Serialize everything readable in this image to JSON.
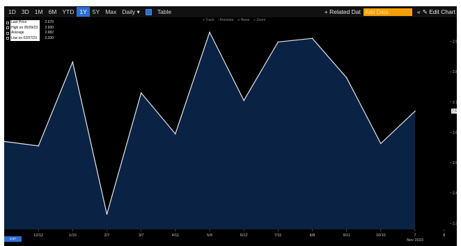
{
  "toolbar": {
    "periods": [
      "1D",
      "3D",
      "1M",
      "6M",
      "YTD",
      "1Y",
      "5Y",
      "Max"
    ],
    "active_period": "1Y",
    "frequency": "Daily ▾",
    "table_label": "Table",
    "related_data": "+ Related Dat",
    "add_data_placeholder": "Add Data",
    "collapse_glyph": "«",
    "edit_chart": "✎ Edit Chart",
    "settings_icon": "gear-icon"
  },
  "chart_tools": [
    "+ Track",
    "∕ Annotate",
    "≡ News",
    "⌕ Zoom"
  ],
  "legend": [
    {
      "label": "Last Price",
      "value": "2.670"
    },
    {
      "label": "High on 05/09/23",
      "value": "2.930"
    },
    {
      "label": "Average",
      "value": "2.682"
    },
    {
      "label": "Low on 02/07/23",
      "value": "2.330"
    }
  ],
  "last_price_badge": "2.67",
  "page_badge": "2.67",
  "colors": {
    "background": "#000000",
    "area_fill": "#0a2244",
    "line": "#e8e8e8",
    "accent": "#2b6fd4",
    "add_data": "#f5a000"
  },
  "chart_data": {
    "type": "area",
    "x_labels": [
      "12/12",
      "1/10",
      "2/7",
      "3/7",
      "4/11",
      "5/9",
      "6/12",
      "7/11",
      "8/8",
      "9/11",
      "10/10",
      "7",
      "8"
    ],
    "x_sublabel": "Nov 2023",
    "y_ticks": [
      "2.9",
      "2.8",
      "2.7",
      "2.6",
      "2.5",
      "2.4",
      "2.3"
    ],
    "ylim": [
      2.28,
      2.97
    ],
    "grid": false,
    "points": [
      {
        "x": "Nov 2022",
        "y": 2.57
      },
      {
        "x": "Dec 2022",
        "y": 2.555
      },
      {
        "x": "Jan 2023",
        "y": 2.832
      },
      {
        "x": "Feb 2023",
        "y": 2.33
      },
      {
        "x": "Mar 2023",
        "y": 2.73
      },
      {
        "x": "Apr 2023",
        "y": 2.595
      },
      {
        "x": "May 2023",
        "y": 2.93
      },
      {
        "x": "Jun 2023",
        "y": 2.705
      },
      {
        "x": "Jul 2023",
        "y": 2.898
      },
      {
        "x": "Aug 2023",
        "y": 2.91
      },
      {
        "x": "Sep 2023",
        "y": 2.78
      },
      {
        "x": "Oct 2023",
        "y": 2.563
      },
      {
        "x": "Nov 2023",
        "y": 2.67
      }
    ]
  }
}
